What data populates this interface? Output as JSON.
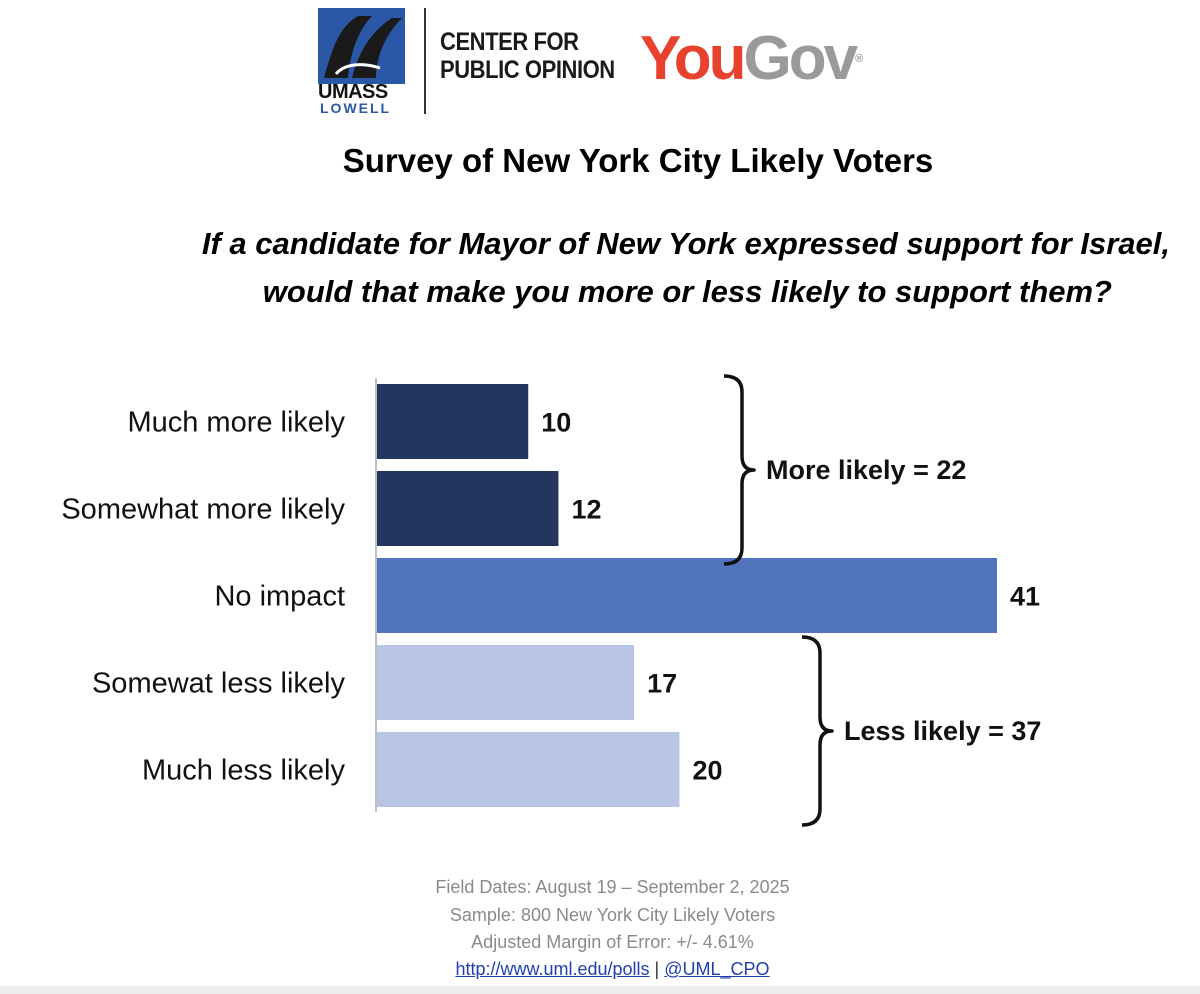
{
  "logos": {
    "umass_line1": "UMASS",
    "umass_line2": "LOWELL",
    "center_line1": "CENTER FOR",
    "center_line2": "PUBLIC OPINION",
    "yougov_you": "You",
    "yougov_gov": "Gov",
    "yougov_mark": "®"
  },
  "title": "Survey of New York City Likely Voters",
  "question_line1": "If a candidate for Mayor of New York expressed support for Israel,",
  "question_line2": "would that make you more or less likely to support them?",
  "chart_data": {
    "type": "bar",
    "orientation": "horizontal",
    "categories": [
      "Much more likely",
      "Somewhat more likely",
      "No impact",
      "Somewat less likely",
      "Much less likely"
    ],
    "values": [
      10,
      12,
      41,
      17,
      20
    ],
    "value_labels": [
      "10",
      "12",
      "41",
      "17",
      "20"
    ],
    "colors": [
      "#24365f",
      "#24365f",
      "#5273be",
      "#b8c5e5",
      "#b8c5e5"
    ],
    "xlim": [
      0,
      43
    ],
    "grid": false,
    "groups": [
      {
        "label": "More likely = 22",
        "from_index": 0,
        "to_index": 1
      },
      {
        "label": "Less likely = 37",
        "from_index": 3,
        "to_index": 4
      }
    ]
  },
  "footer": {
    "field_dates": "Field Dates: August 19 – September 2, 2025",
    "sample": "Sample: 800 New York City Likely Voters",
    "moe": "Adjusted Margin of Error: +/- 4.61%",
    "link": "http://www.uml.edu/polls",
    "separator": "|",
    "handle": "@UML_CPO"
  }
}
